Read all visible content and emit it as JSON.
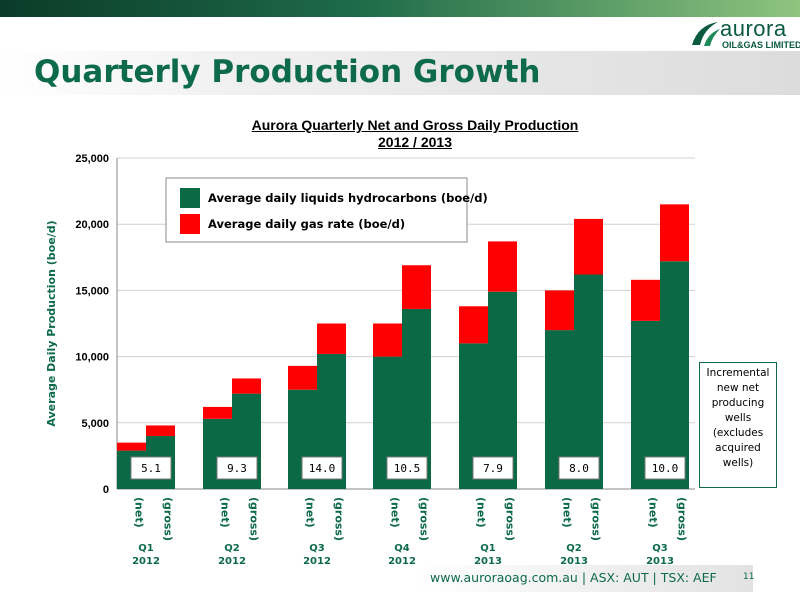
{
  "slide": {
    "title": "Quarterly Production Growth",
    "logo_name": "aurora",
    "logo_sub": "OIL&GAS LIMITED",
    "footer": "www.auroraoag.com.au   |   ASX: AUT   |   TSX: AEF",
    "page_number": "11",
    "note": "Incremental new net producing wells (excludes acquired wells)"
  },
  "colors": {
    "brand_green": "#0d6a4a",
    "liquids": "#0b6a45",
    "gas": "#ff0000"
  },
  "chart_data": {
    "type": "bar",
    "stacked": true,
    "title": "Aurora Quarterly Net and Gross Daily Production",
    "subtitle": "2012 / 2013",
    "ylabel": "Average Daily Production (boe/d)",
    "xlabel": "",
    "ylim": [
      0,
      25000
    ],
    "yticks": [
      "0",
      "5,000",
      "10,000",
      "15,000",
      "20,000",
      "25,000"
    ],
    "grid": true,
    "legend_position": "top-left",
    "categories": [
      "(net)",
      "(gross)",
      "(net)",
      "(gross)",
      "(net)",
      "(gross)",
      "(net)",
      "(gross)",
      "(net)",
      "(gross)",
      "(net)",
      "(gross)",
      "(net)",
      "(gross)"
    ],
    "groups": [
      {
        "quarter": "Q1",
        "year": "2012",
        "wells": "5.1"
      },
      {
        "quarter": "Q2",
        "year": "2012",
        "wells": "9.3"
      },
      {
        "quarter": "Q3",
        "year": "2012",
        "wells": "14.0"
      },
      {
        "quarter": "Q4",
        "year": "2012",
        "wells": "10.5"
      },
      {
        "quarter": "Q1",
        "year": "2013",
        "wells": "7.9"
      },
      {
        "quarter": "Q2",
        "year": "2013",
        "wells": "8.0"
      },
      {
        "quarter": "Q3",
        "year": "2013",
        "wells": "10.0"
      }
    ],
    "series": [
      {
        "name": "Average daily liquids hydrocarbons (boe/d)",
        "values": [
          2900,
          4000,
          5300,
          7200,
          7500,
          10200,
          10000,
          13600,
          11000,
          14900,
          12000,
          16200,
          12700,
          17200
        ]
      },
      {
        "name": "Average daily gas rate (boe/d)",
        "values": [
          600,
          800,
          900,
          1150,
          1800,
          2300,
          2500,
          3300,
          2800,
          3800,
          3000,
          4200,
          3100,
          4300
        ]
      }
    ]
  }
}
